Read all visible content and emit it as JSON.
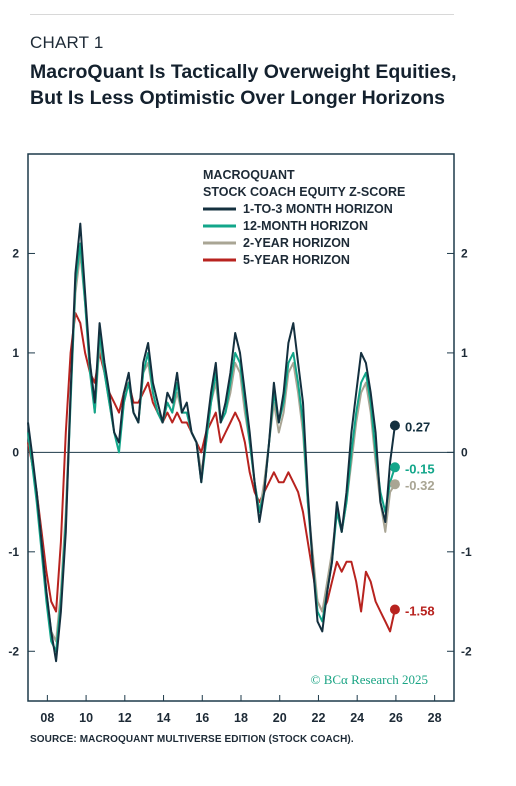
{
  "header": {
    "chart_number": "CHART 1",
    "title": "MacroQuant Is Tactically Overweight Equities, But Is Less Optimistic Over Longer Horizons"
  },
  "source": "SOURCE: MACROQUANT MULTIVERSE EDITION (STOCK COACH).",
  "watermark": "© BCα Research 2025",
  "chart_data": {
    "type": "line",
    "title": "MACROQUANT",
    "subtitle": "STOCK COACH EQUITY Z-SCORE",
    "xlim": [
      2007,
      2029
    ],
    "ylim": [
      -2.5,
      3.0
    ],
    "x_ticks": [
      2008,
      2010,
      2012,
      2014,
      2016,
      2018,
      2020,
      2022,
      2024,
      2026,
      2028
    ],
    "x_tick_labels": [
      "08",
      "10",
      "12",
      "14",
      "16",
      "18",
      "20",
      "22",
      "24",
      "26",
      "28"
    ],
    "y_ticks": [
      2,
      1,
      0,
      -1,
      -2
    ],
    "y_tick_labels": [
      "2",
      "1",
      "0",
      "-1",
      "-2"
    ],
    "legend_position": "top-center",
    "grid": false,
    "series": [
      {
        "name": "1-TO-3 MONTH HORIZON",
        "color": "#14303f",
        "end_label": "0.27",
        "end_value": 0.27,
        "x": [
          2007.0,
          2007.2,
          2007.45,
          2007.7,
          2007.95,
          2008.2,
          2008.45,
          2008.7,
          2008.95,
          2009.2,
          2009.45,
          2009.7,
          2009.95,
          2010.2,
          2010.45,
          2010.7,
          2010.95,
          2011.2,
          2011.45,
          2011.7,
          2011.95,
          2012.2,
          2012.45,
          2012.7,
          2012.95,
          2013.2,
          2013.45,
          2013.7,
          2013.95,
          2014.2,
          2014.45,
          2014.7,
          2014.95,
          2015.2,
          2015.45,
          2015.7,
          2015.95,
          2016.2,
          2016.45,
          2016.7,
          2016.95,
          2017.2,
          2017.45,
          2017.7,
          2017.95,
          2018.2,
          2018.45,
          2018.7,
          2018.95,
          2019.2,
          2019.45,
          2019.7,
          2019.95,
          2020.2,
          2020.45,
          2020.7,
          2020.95,
          2021.2,
          2021.45,
          2021.7,
          2021.95,
          2022.2,
          2022.45,
          2022.7,
          2022.95,
          2023.2,
          2023.45,
          2023.7,
          2023.95,
          2024.2,
          2024.45,
          2024.7,
          2024.95,
          2025.2,
          2025.45,
          2025.7,
          2025.95
        ],
        "values": [
          0.3,
          0.0,
          -0.4,
          -0.9,
          -1.4,
          -1.8,
          -2.1,
          -1.6,
          -0.8,
          0.6,
          1.8,
          2.3,
          1.6,
          0.9,
          0.5,
          1.3,
          0.9,
          0.6,
          0.2,
          0.1,
          0.6,
          0.8,
          0.4,
          0.3,
          0.9,
          1.1,
          0.7,
          0.5,
          0.3,
          0.6,
          0.5,
          0.8,
          0.4,
          0.5,
          0.2,
          0.1,
          -0.3,
          0.2,
          0.6,
          0.9,
          0.3,
          0.5,
          0.8,
          1.2,
          1.0,
          0.6,
          0.2,
          -0.3,
          -0.7,
          -0.4,
          0.1,
          0.7,
          0.3,
          0.6,
          1.1,
          1.3,
          0.9,
          0.5,
          -0.4,
          -1.1,
          -1.7,
          -1.8,
          -1.4,
          -1.1,
          -0.5,
          -0.8,
          -0.4,
          0.2,
          0.6,
          1.0,
          0.9,
          0.6,
          0.2,
          -0.5,
          -0.7,
          -0.1,
          0.27
        ]
      },
      {
        "name": "12-MONTH HORIZON",
        "color": "#12a68a",
        "end_label": "-0.15",
        "end_value": -0.15,
        "x": [
          2007.0,
          2007.2,
          2007.45,
          2007.7,
          2007.95,
          2008.2,
          2008.45,
          2008.7,
          2008.95,
          2009.2,
          2009.45,
          2009.7,
          2009.95,
          2010.2,
          2010.45,
          2010.7,
          2010.95,
          2011.2,
          2011.45,
          2011.7,
          2011.95,
          2012.2,
          2012.45,
          2012.7,
          2012.95,
          2013.2,
          2013.45,
          2013.7,
          2013.95,
          2014.2,
          2014.45,
          2014.7,
          2014.95,
          2015.2,
          2015.45,
          2015.7,
          2015.95,
          2016.2,
          2016.45,
          2016.7,
          2016.95,
          2017.2,
          2017.45,
          2017.7,
          2017.95,
          2018.2,
          2018.45,
          2018.7,
          2018.95,
          2019.2,
          2019.45,
          2019.7,
          2019.95,
          2020.2,
          2020.45,
          2020.7,
          2020.95,
          2021.2,
          2021.45,
          2021.7,
          2021.95,
          2022.2,
          2022.45,
          2022.7,
          2022.95,
          2023.2,
          2023.45,
          2023.7,
          2023.95,
          2024.2,
          2024.45,
          2024.7,
          2024.95,
          2025.2,
          2025.45,
          2025.7,
          2025.95
        ],
        "values": [
          0.2,
          -0.1,
          -0.5,
          -1.0,
          -1.5,
          -1.9,
          -2.0,
          -1.5,
          -0.7,
          0.5,
          1.7,
          2.1,
          1.5,
          0.8,
          0.4,
          1.2,
          0.8,
          0.5,
          0.2,
          0.0,
          0.5,
          0.7,
          0.4,
          0.3,
          0.8,
          1.0,
          0.6,
          0.4,
          0.3,
          0.5,
          0.4,
          0.7,
          0.4,
          0.4,
          0.2,
          0.1,
          -0.3,
          0.1,
          0.5,
          0.8,
          0.3,
          0.4,
          0.7,
          1.0,
          0.9,
          0.5,
          0.1,
          -0.3,
          -0.6,
          -0.4,
          0.1,
          0.6,
          0.3,
          0.5,
          0.9,
          1.0,
          0.7,
          0.3,
          -0.5,
          -1.1,
          -1.6,
          -1.7,
          -1.4,
          -1.1,
          -0.6,
          -0.8,
          -0.5,
          0.0,
          0.4,
          0.7,
          0.8,
          0.5,
          0.0,
          -0.4,
          -0.6,
          -0.3,
          -0.15
        ]
      },
      {
        "name": "2-YEAR HORIZON",
        "color": "#a9a594",
        "end_label": "-0.32",
        "end_value": -0.32,
        "x": [
          2007.0,
          2007.2,
          2007.45,
          2007.7,
          2007.95,
          2008.2,
          2008.45,
          2008.7,
          2008.95,
          2009.2,
          2009.45,
          2009.7,
          2009.95,
          2010.2,
          2010.45,
          2010.7,
          2010.95,
          2011.2,
          2011.45,
          2011.7,
          2011.95,
          2012.2,
          2012.45,
          2012.7,
          2012.95,
          2013.2,
          2013.45,
          2013.7,
          2013.95,
          2014.2,
          2014.45,
          2014.7,
          2014.95,
          2015.2,
          2015.45,
          2015.7,
          2015.95,
          2016.2,
          2016.45,
          2016.7,
          2016.95,
          2017.2,
          2017.45,
          2017.7,
          2017.95,
          2018.2,
          2018.45,
          2018.7,
          2018.95,
          2019.2,
          2019.45,
          2019.7,
          2019.95,
          2020.2,
          2020.45,
          2020.7,
          2020.95,
          2021.2,
          2021.45,
          2021.7,
          2021.95,
          2022.2,
          2022.45,
          2022.7,
          2022.95,
          2023.2,
          2023.45,
          2023.7,
          2023.95,
          2024.2,
          2024.45,
          2024.7,
          2024.95,
          2025.2,
          2025.45,
          2025.7,
          2025.95
        ],
        "values": [
          0.2,
          -0.1,
          -0.4,
          -0.9,
          -1.4,
          -1.8,
          -1.9,
          -1.4,
          -0.6,
          0.6,
          1.6,
          2.0,
          1.5,
          0.9,
          0.4,
          1.1,
          0.8,
          0.5,
          0.2,
          0.1,
          0.5,
          0.7,
          0.4,
          0.3,
          0.8,
          0.9,
          0.6,
          0.4,
          0.3,
          0.5,
          0.4,
          0.6,
          0.4,
          0.4,
          0.2,
          0.1,
          -0.2,
          0.1,
          0.5,
          0.7,
          0.3,
          0.4,
          0.6,
          0.9,
          0.8,
          0.4,
          0.1,
          -0.3,
          -0.6,
          -0.3,
          0.1,
          0.5,
          0.2,
          0.4,
          0.8,
          0.9,
          0.6,
          0.2,
          -0.5,
          -1.0,
          -1.5,
          -1.6,
          -1.3,
          -1.0,
          -0.6,
          -0.8,
          -0.5,
          -0.1,
          0.3,
          0.6,
          0.7,
          0.4,
          -0.1,
          -0.5,
          -0.8,
          -0.4,
          -0.32
        ]
      },
      {
        "name": "5-YEAR HORIZON",
        "color": "#b8231f",
        "end_label": "-1.58",
        "end_value": -1.58,
        "x": [
          2007.0,
          2007.2,
          2007.45,
          2007.7,
          2007.95,
          2008.2,
          2008.45,
          2008.7,
          2008.95,
          2009.2,
          2009.45,
          2009.7,
          2009.95,
          2010.2,
          2010.45,
          2010.7,
          2010.95,
          2011.2,
          2011.45,
          2011.7,
          2011.95,
          2012.2,
          2012.45,
          2012.7,
          2012.95,
          2013.2,
          2013.45,
          2013.7,
          2013.95,
          2014.2,
          2014.45,
          2014.7,
          2014.95,
          2015.2,
          2015.45,
          2015.7,
          2015.95,
          2016.2,
          2016.45,
          2016.7,
          2016.95,
          2017.2,
          2017.45,
          2017.7,
          2017.95,
          2018.2,
          2018.45,
          2018.7,
          2018.95,
          2019.2,
          2019.45,
          2019.7,
          2019.95,
          2020.2,
          2020.45,
          2020.7,
          2020.95,
          2021.2,
          2021.45,
          2021.7,
          2021.95,
          2022.2,
          2022.45,
          2022.7,
          2022.95,
          2023.2,
          2023.45,
          2023.7,
          2023.95,
          2024.2,
          2024.45,
          2024.7,
          2024.95,
          2025.2,
          2025.45,
          2025.7,
          2025.95
        ],
        "values": [
          0.1,
          -0.1,
          -0.4,
          -0.8,
          -1.2,
          -1.5,
          -1.6,
          -0.9,
          0.2,
          1.0,
          1.4,
          1.3,
          1.0,
          0.8,
          0.7,
          1.0,
          0.8,
          0.6,
          0.5,
          0.4,
          0.6,
          0.7,
          0.5,
          0.5,
          0.6,
          0.7,
          0.5,
          0.4,
          0.3,
          0.4,
          0.3,
          0.4,
          0.3,
          0.3,
          0.2,
          0.1,
          0.0,
          0.2,
          0.3,
          0.4,
          0.1,
          0.2,
          0.3,
          0.4,
          0.3,
          0.1,
          -0.2,
          -0.4,
          -0.5,
          -0.4,
          -0.3,
          -0.2,
          -0.3,
          -0.3,
          -0.2,
          -0.3,
          -0.4,
          -0.6,
          -0.9,
          -1.2,
          -1.5,
          -1.6,
          -1.5,
          -1.3,
          -1.1,
          -1.2,
          -1.1,
          -1.1,
          -1.3,
          -1.6,
          -1.2,
          -1.3,
          -1.5,
          -1.6,
          -1.7,
          -1.8,
          -1.58
        ]
      }
    ]
  }
}
